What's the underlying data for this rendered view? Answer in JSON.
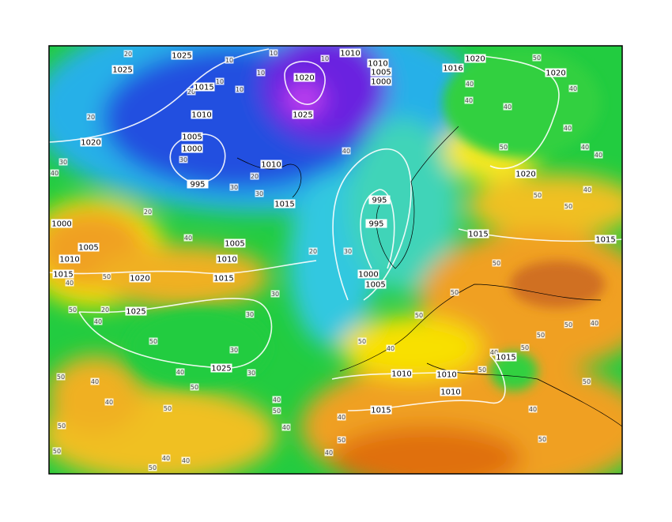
{
  "pressure_labels": [
    "1025",
    "1025",
    "1015",
    "1010",
    "1005",
    "1000",
    "1020",
    "1020",
    "1025",
    "1010",
    "1010",
    "1005",
    "1000",
    "1016",
    "1020",
    "1020",
    "995",
    "1010",
    "1015",
    "995",
    "995",
    "1000",
    "1005",
    "1020",
    "1015",
    "1015",
    "1000",
    "1005",
    "1010",
    "1015",
    "1005",
    "1010",
    "1015",
    "1020",
    "1025",
    "1025",
    "1010",
    "1010",
    "1010",
    "1015",
    "1015"
  ],
  "contour_labels": [
    "20",
    "10",
    "10",
    "10",
    "10",
    "10",
    "10",
    "20",
    "20",
    "30",
    "30",
    "40",
    "20",
    "30",
    "30",
    "20",
    "40",
    "50",
    "40",
    "40",
    "40",
    "40",
    "40",
    "40",
    "50",
    "40",
    "50",
    "50",
    "40",
    "20",
    "30",
    "30",
    "30",
    "30",
    "50",
    "40",
    "50",
    "50",
    "40",
    "40",
    "50",
    "50",
    "50",
    "40",
    "50",
    "40",
    "40",
    "50",
    "40",
    "40",
    "50",
    "40",
    "50",
    "40",
    "50",
    "30",
    "50",
    "50",
    "40",
    "50",
    "40",
    "50",
    "50",
    "50",
    "40",
    "50",
    "50",
    "20",
    "40",
    "50",
    "50",
    "40",
    "40"
  ]
}
